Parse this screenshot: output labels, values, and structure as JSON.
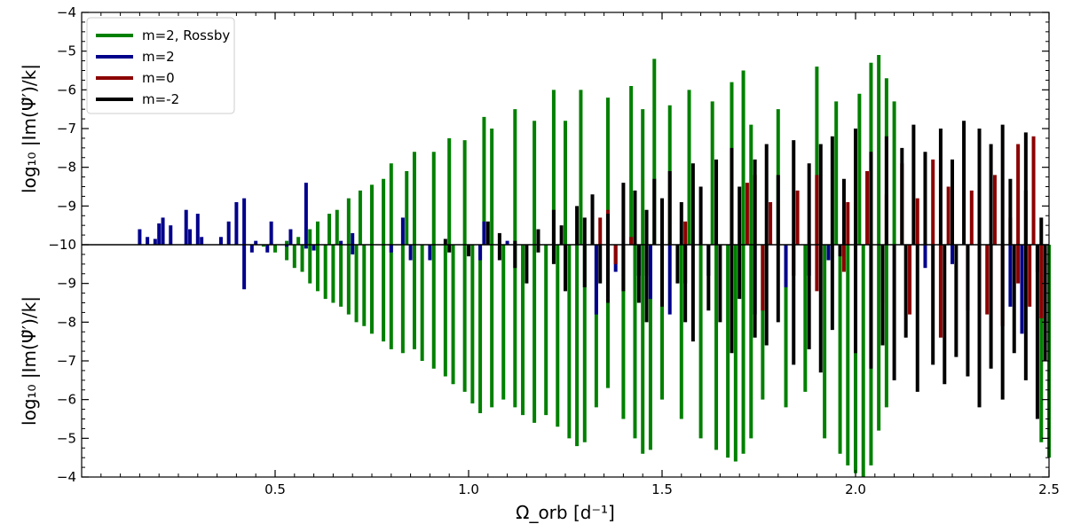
{
  "chart_data": {
    "type": "bar",
    "subtype": "mirrored-stem",
    "xlabel": "Ω_orb [d⁻¹]",
    "ylabel_top": "log₁₀ |Im(Ψ̃′)/k|",
    "ylabel_bottom": "log₁₀ |Im(Ψ̃′)/k|",
    "xlim": [
      0.0,
      2.5
    ],
    "top_ylim": [
      -10,
      -4
    ],
    "bottom_ylim": [
      -10,
      -4
    ],
    "xticks": [
      0.5,
      1.0,
      1.5,
      2.0,
      2.5
    ],
    "xtick_labels": [
      "0.5",
      "1.0",
      "1.5",
      "2.0",
      "2.5"
    ],
    "top_yticks": [
      -10,
      -9,
      -8,
      -7,
      -6,
      -5,
      -4
    ],
    "top_ytick_labels": [
      "−10",
      "−9",
      "−8",
      "−7",
      "−6",
      "−5",
      "−4"
    ],
    "bottom_yticks": [
      -9,
      -8,
      -7,
      -6,
      -5,
      -4
    ],
    "bottom_ytick_labels": [
      "−9",
      "−8",
      "−7",
      "−6",
      "−5",
      "−4"
    ],
    "legend_position": "top-left",
    "grid": false,
    "series": [
      {
        "name": "m=2, Rossby",
        "color": "#008000",
        "top": [
          [
            0.49,
            -9.95
          ],
          [
            0.53,
            -9.9
          ],
          [
            0.56,
            -9.8
          ],
          [
            0.59,
            -9.6
          ],
          [
            0.61,
            -9.4
          ],
          [
            0.64,
            -9.2
          ],
          [
            0.66,
            -9.1
          ],
          [
            0.69,
            -8.8
          ],
          [
            0.72,
            -8.6
          ],
          [
            0.75,
            -8.45
          ],
          [
            0.78,
            -8.3
          ],
          [
            0.8,
            -7.9
          ],
          [
            0.84,
            -8.1
          ],
          [
            0.86,
            -7.6
          ],
          [
            0.91,
            -7.6
          ],
          [
            0.95,
            -7.25
          ],
          [
            0.99,
            -7.3
          ],
          [
            1.04,
            -6.7
          ],
          [
            1.06,
            -7.0
          ],
          [
            1.12,
            -6.5
          ],
          [
            1.17,
            -6.8
          ],
          [
            1.22,
            -6.0
          ],
          [
            1.25,
            -6.8
          ],
          [
            1.29,
            -6.0
          ],
          [
            1.36,
            -6.2
          ],
          [
            1.42,
            -5.9
          ],
          [
            1.45,
            -6.5
          ],
          [
            1.48,
            -5.2
          ],
          [
            1.52,
            -6.4
          ],
          [
            1.57,
            -6.0
          ],
          [
            1.63,
            -6.3
          ],
          [
            1.68,
            -5.8
          ],
          [
            1.71,
            -5.5
          ],
          [
            1.73,
            -6.9
          ],
          [
            1.8,
            -6.5
          ],
          [
            1.9,
            -5.4
          ],
          [
            1.95,
            -6.3
          ],
          [
            2.01,
            -6.1
          ],
          [
            2.04,
            -5.3
          ],
          [
            2.06,
            -5.1
          ],
          [
            2.08,
            -5.7
          ],
          [
            2.1,
            -6.3
          ]
        ],
        "bottom": [
          [
            0.47,
            -9.95
          ],
          [
            0.5,
            -9.8
          ],
          [
            0.53,
            -9.6
          ],
          [
            0.55,
            -9.4
          ],
          [
            0.57,
            -9.3
          ],
          [
            0.59,
            -9.0
          ],
          [
            0.61,
            -8.8
          ],
          [
            0.63,
            -8.6
          ],
          [
            0.65,
            -8.5
          ],
          [
            0.67,
            -8.4
          ],
          [
            0.69,
            -8.2
          ],
          [
            0.71,
            -8.0
          ],
          [
            0.73,
            -7.9
          ],
          [
            0.75,
            -7.7
          ],
          [
            0.78,
            -7.5
          ],
          [
            0.8,
            -7.3
          ],
          [
            0.83,
            -7.2
          ],
          [
            0.86,
            -7.3
          ],
          [
            0.88,
            -7.0
          ],
          [
            0.91,
            -6.8
          ],
          [
            0.94,
            -6.6
          ],
          [
            0.96,
            -6.4
          ],
          [
            0.99,
            -6.2
          ],
          [
            1.01,
            -5.9
          ],
          [
            1.03,
            -5.65
          ],
          [
            1.06,
            -5.8
          ],
          [
            1.09,
            -6.0
          ],
          [
            1.12,
            -5.8
          ],
          [
            1.14,
            -5.6
          ],
          [
            1.17,
            -5.4
          ],
          [
            1.2,
            -5.6
          ],
          [
            1.23,
            -5.3
          ],
          [
            1.26,
            -5.0
          ],
          [
            1.28,
            -4.8
          ],
          [
            1.3,
            -4.9
          ],
          [
            1.33,
            -5.8
          ],
          [
            1.36,
            -6.3
          ],
          [
            1.4,
            -5.5
          ],
          [
            1.43,
            -5.0
          ],
          [
            1.45,
            -4.6
          ],
          [
            1.47,
            -4.7
          ],
          [
            1.5,
            -6.0
          ],
          [
            1.55,
            -5.5
          ],
          [
            1.6,
            -5.0
          ],
          [
            1.64,
            -4.7
          ],
          [
            1.67,
            -4.5
          ],
          [
            1.69,
            -4.4
          ],
          [
            1.71,
            -4.6
          ],
          [
            1.73,
            -5.0
          ],
          [
            1.76,
            -6.0
          ],
          [
            1.82,
            -5.8
          ],
          [
            1.87,
            -6.2
          ],
          [
            1.92,
            -5.0
          ],
          [
            1.96,
            -4.6
          ],
          [
            1.98,
            -4.3
          ],
          [
            2.0,
            -4.1
          ],
          [
            2.02,
            -4.0
          ],
          [
            2.04,
            -4.3
          ],
          [
            2.06,
            -5.2
          ],
          [
            2.08,
            -5.8
          ],
          [
            2.48,
            -4.9
          ],
          [
            2.5,
            -4.5
          ]
        ]
      },
      {
        "name": "m=2",
        "color": "#00008b",
        "top": [
          [
            0.15,
            -9.6
          ],
          [
            0.17,
            -9.8
          ],
          [
            0.19,
            -9.85
          ],
          [
            0.2,
            -9.45
          ],
          [
            0.21,
            -9.3
          ],
          [
            0.23,
            -9.5
          ],
          [
            0.27,
            -9.1
          ],
          [
            0.28,
            -9.6
          ],
          [
            0.3,
            -9.2
          ],
          [
            0.31,
            -9.8
          ],
          [
            0.36,
            -9.8
          ],
          [
            0.38,
            -9.4
          ],
          [
            0.4,
            -8.9
          ],
          [
            0.42,
            -8.8
          ],
          [
            0.45,
            -9.9
          ],
          [
            0.49,
            -9.4
          ],
          [
            0.54,
            -9.6
          ],
          [
            0.58,
            -8.4
          ],
          [
            0.67,
            -9.9
          ],
          [
            0.7,
            -9.7
          ],
          [
            0.83,
            -9.3
          ],
          [
            1.04,
            -9.4
          ],
          [
            1.1,
            -9.9
          ]
        ],
        "bottom": [
          [
            0.42,
            -8.85
          ],
          [
            0.44,
            -9.8
          ],
          [
            0.48,
            -9.8
          ],
          [
            0.53,
            -9.95
          ],
          [
            0.58,
            -9.9
          ],
          [
            0.6,
            -9.85
          ],
          [
            0.7,
            -9.75
          ],
          [
            0.8,
            -9.8
          ],
          [
            0.85,
            -9.6
          ],
          [
            0.9,
            -9.6
          ],
          [
            1.03,
            -9.6
          ],
          [
            1.33,
            -8.2
          ],
          [
            1.38,
            -9.3
          ],
          [
            1.44,
            -9.2
          ],
          [
            1.47,
            -8.6
          ],
          [
            1.52,
            -8.2
          ],
          [
            1.62,
            -9.2
          ],
          [
            1.74,
            -8.2
          ],
          [
            1.82,
            -8.9
          ],
          [
            1.88,
            -9.2
          ],
          [
            1.93,
            -9.6
          ],
          [
            2.0,
            -9.4
          ],
          [
            2.18,
            -9.4
          ],
          [
            2.25,
            -9.5
          ],
          [
            2.4,
            -8.4
          ],
          [
            2.43,
            -7.7
          ],
          [
            2.47,
            -9.3
          ]
        ]
      },
      {
        "name": "m=0",
        "color": "#8b0000",
        "top": [
          [
            1.34,
            -9.3
          ],
          [
            1.36,
            -9.1
          ],
          [
            1.42,
            -9.8
          ],
          [
            1.56,
            -9.4
          ],
          [
            1.68,
            -8.7
          ],
          [
            1.72,
            -8.4
          ],
          [
            1.74,
            -8.2
          ],
          [
            1.78,
            -8.9
          ],
          [
            1.85,
            -8.6
          ],
          [
            1.9,
            -8.2
          ],
          [
            1.98,
            -8.9
          ],
          [
            2.03,
            -8.1
          ],
          [
            2.08,
            -8.7
          ],
          [
            2.12,
            -7.9
          ],
          [
            2.16,
            -8.8
          ],
          [
            2.2,
            -7.8
          ],
          [
            2.24,
            -8.5
          ],
          [
            2.3,
            -8.6
          ],
          [
            2.36,
            -8.2
          ],
          [
            2.4,
            -9.3
          ],
          [
            2.42,
            -7.4
          ],
          [
            2.44,
            -8.6
          ],
          [
            2.46,
            -7.2
          ]
        ],
        "bottom": [
          [
            1.38,
            -9.5
          ],
          [
            1.46,
            -9.2
          ],
          [
            1.56,
            -9.0
          ],
          [
            1.76,
            -8.3
          ],
          [
            1.84,
            -9.2
          ],
          [
            1.9,
            -8.8
          ],
          [
            1.97,
            -9.3
          ],
          [
            2.07,
            -8.5
          ],
          [
            2.14,
            -8.2
          ],
          [
            2.22,
            -7.6
          ],
          [
            2.29,
            -8.3
          ],
          [
            2.34,
            -8.2
          ],
          [
            2.38,
            -7.9
          ],
          [
            2.42,
            -9.0
          ],
          [
            2.45,
            -8.4
          ],
          [
            2.48,
            -8.1
          ]
        ]
      },
      {
        "name": "m=-2",
        "color": "#000000",
        "top": [
          [
            0.94,
            -9.85
          ],
          [
            1.05,
            -9.4
          ],
          [
            1.08,
            -9.7
          ],
          [
            1.12,
            -9.9
          ],
          [
            1.18,
            -9.6
          ],
          [
            1.22,
            -9.1
          ],
          [
            1.24,
            -9.5
          ],
          [
            1.28,
            -9.0
          ],
          [
            1.3,
            -9.3
          ],
          [
            1.32,
            -8.7
          ],
          [
            1.36,
            -9.2
          ],
          [
            1.4,
            -8.4
          ],
          [
            1.43,
            -8.6
          ],
          [
            1.46,
            -9.1
          ],
          [
            1.48,
            -8.3
          ],
          [
            1.5,
            -8.8
          ],
          [
            1.52,
            -8.1
          ],
          [
            1.55,
            -8.9
          ],
          [
            1.58,
            -7.9
          ],
          [
            1.6,
            -8.5
          ],
          [
            1.64,
            -7.8
          ],
          [
            1.68,
            -7.5
          ],
          [
            1.7,
            -8.5
          ],
          [
            1.74,
            -7.8
          ],
          [
            1.77,
            -7.4
          ],
          [
            1.8,
            -8.2
          ],
          [
            1.84,
            -7.3
          ],
          [
            1.88,
            -7.9
          ],
          [
            1.91,
            -7.4
          ],
          [
            1.94,
            -7.2
          ],
          [
            1.97,
            -8.3
          ],
          [
            2.0,
            -7.0
          ],
          [
            2.04,
            -7.6
          ],
          [
            2.08,
            -7.2
          ],
          [
            2.12,
            -7.5
          ],
          [
            2.15,
            -6.9
          ],
          [
            2.18,
            -7.6
          ],
          [
            2.22,
            -7.0
          ],
          [
            2.25,
            -7.8
          ],
          [
            2.28,
            -6.8
          ],
          [
            2.32,
            -7.0
          ],
          [
            2.35,
            -7.4
          ],
          [
            2.38,
            -6.9
          ],
          [
            2.4,
            -8.3
          ],
          [
            2.44,
            -7.1
          ],
          [
            2.48,
            -9.3
          ]
        ],
        "bottom": [
          [
            0.95,
            -9.8
          ],
          [
            1.0,
            -9.7
          ],
          [
            1.08,
            -9.6
          ],
          [
            1.12,
            -9.4
          ],
          [
            1.15,
            -9.0
          ],
          [
            1.18,
            -9.8
          ],
          [
            1.22,
            -9.5
          ],
          [
            1.25,
            -8.8
          ],
          [
            1.3,
            -8.9
          ],
          [
            1.34,
            -9.0
          ],
          [
            1.36,
            -8.5
          ],
          [
            1.4,
            -8.8
          ],
          [
            1.44,
            -8.5
          ],
          [
            1.46,
            -8.0
          ],
          [
            1.5,
            -8.4
          ],
          [
            1.54,
            -9.0
          ],
          [
            1.56,
            -8.0
          ],
          [
            1.58,
            -7.5
          ],
          [
            1.62,
            -8.3
          ],
          [
            1.65,
            -8.0
          ],
          [
            1.68,
            -7.2
          ],
          [
            1.7,
            -8.6
          ],
          [
            1.74,
            -7.6
          ],
          [
            1.77,
            -7.4
          ],
          [
            1.8,
            -8.0
          ],
          [
            1.84,
            -6.9
          ],
          [
            1.88,
            -7.3
          ],
          [
            1.91,
            -6.7
          ],
          [
            1.94,
            -7.8
          ],
          [
            1.96,
            -9.7
          ],
          [
            2.0,
            -7.2
          ],
          [
            2.04,
            -6.8
          ],
          [
            2.07,
            -7.4
          ],
          [
            2.1,
            -6.5
          ],
          [
            2.13,
            -7.6
          ],
          [
            2.16,
            -6.2
          ],
          [
            2.2,
            -6.9
          ],
          [
            2.23,
            -6.4
          ],
          [
            2.26,
            -7.1
          ],
          [
            2.29,
            -6.6
          ],
          [
            2.32,
            -5.8
          ],
          [
            2.35,
            -6.8
          ],
          [
            2.38,
            -6.0
          ],
          [
            2.41,
            -7.2
          ],
          [
            2.44,
            -6.5
          ],
          [
            2.47,
            -5.5
          ],
          [
            2.49,
            -7.0
          ]
        ]
      }
    ]
  }
}
